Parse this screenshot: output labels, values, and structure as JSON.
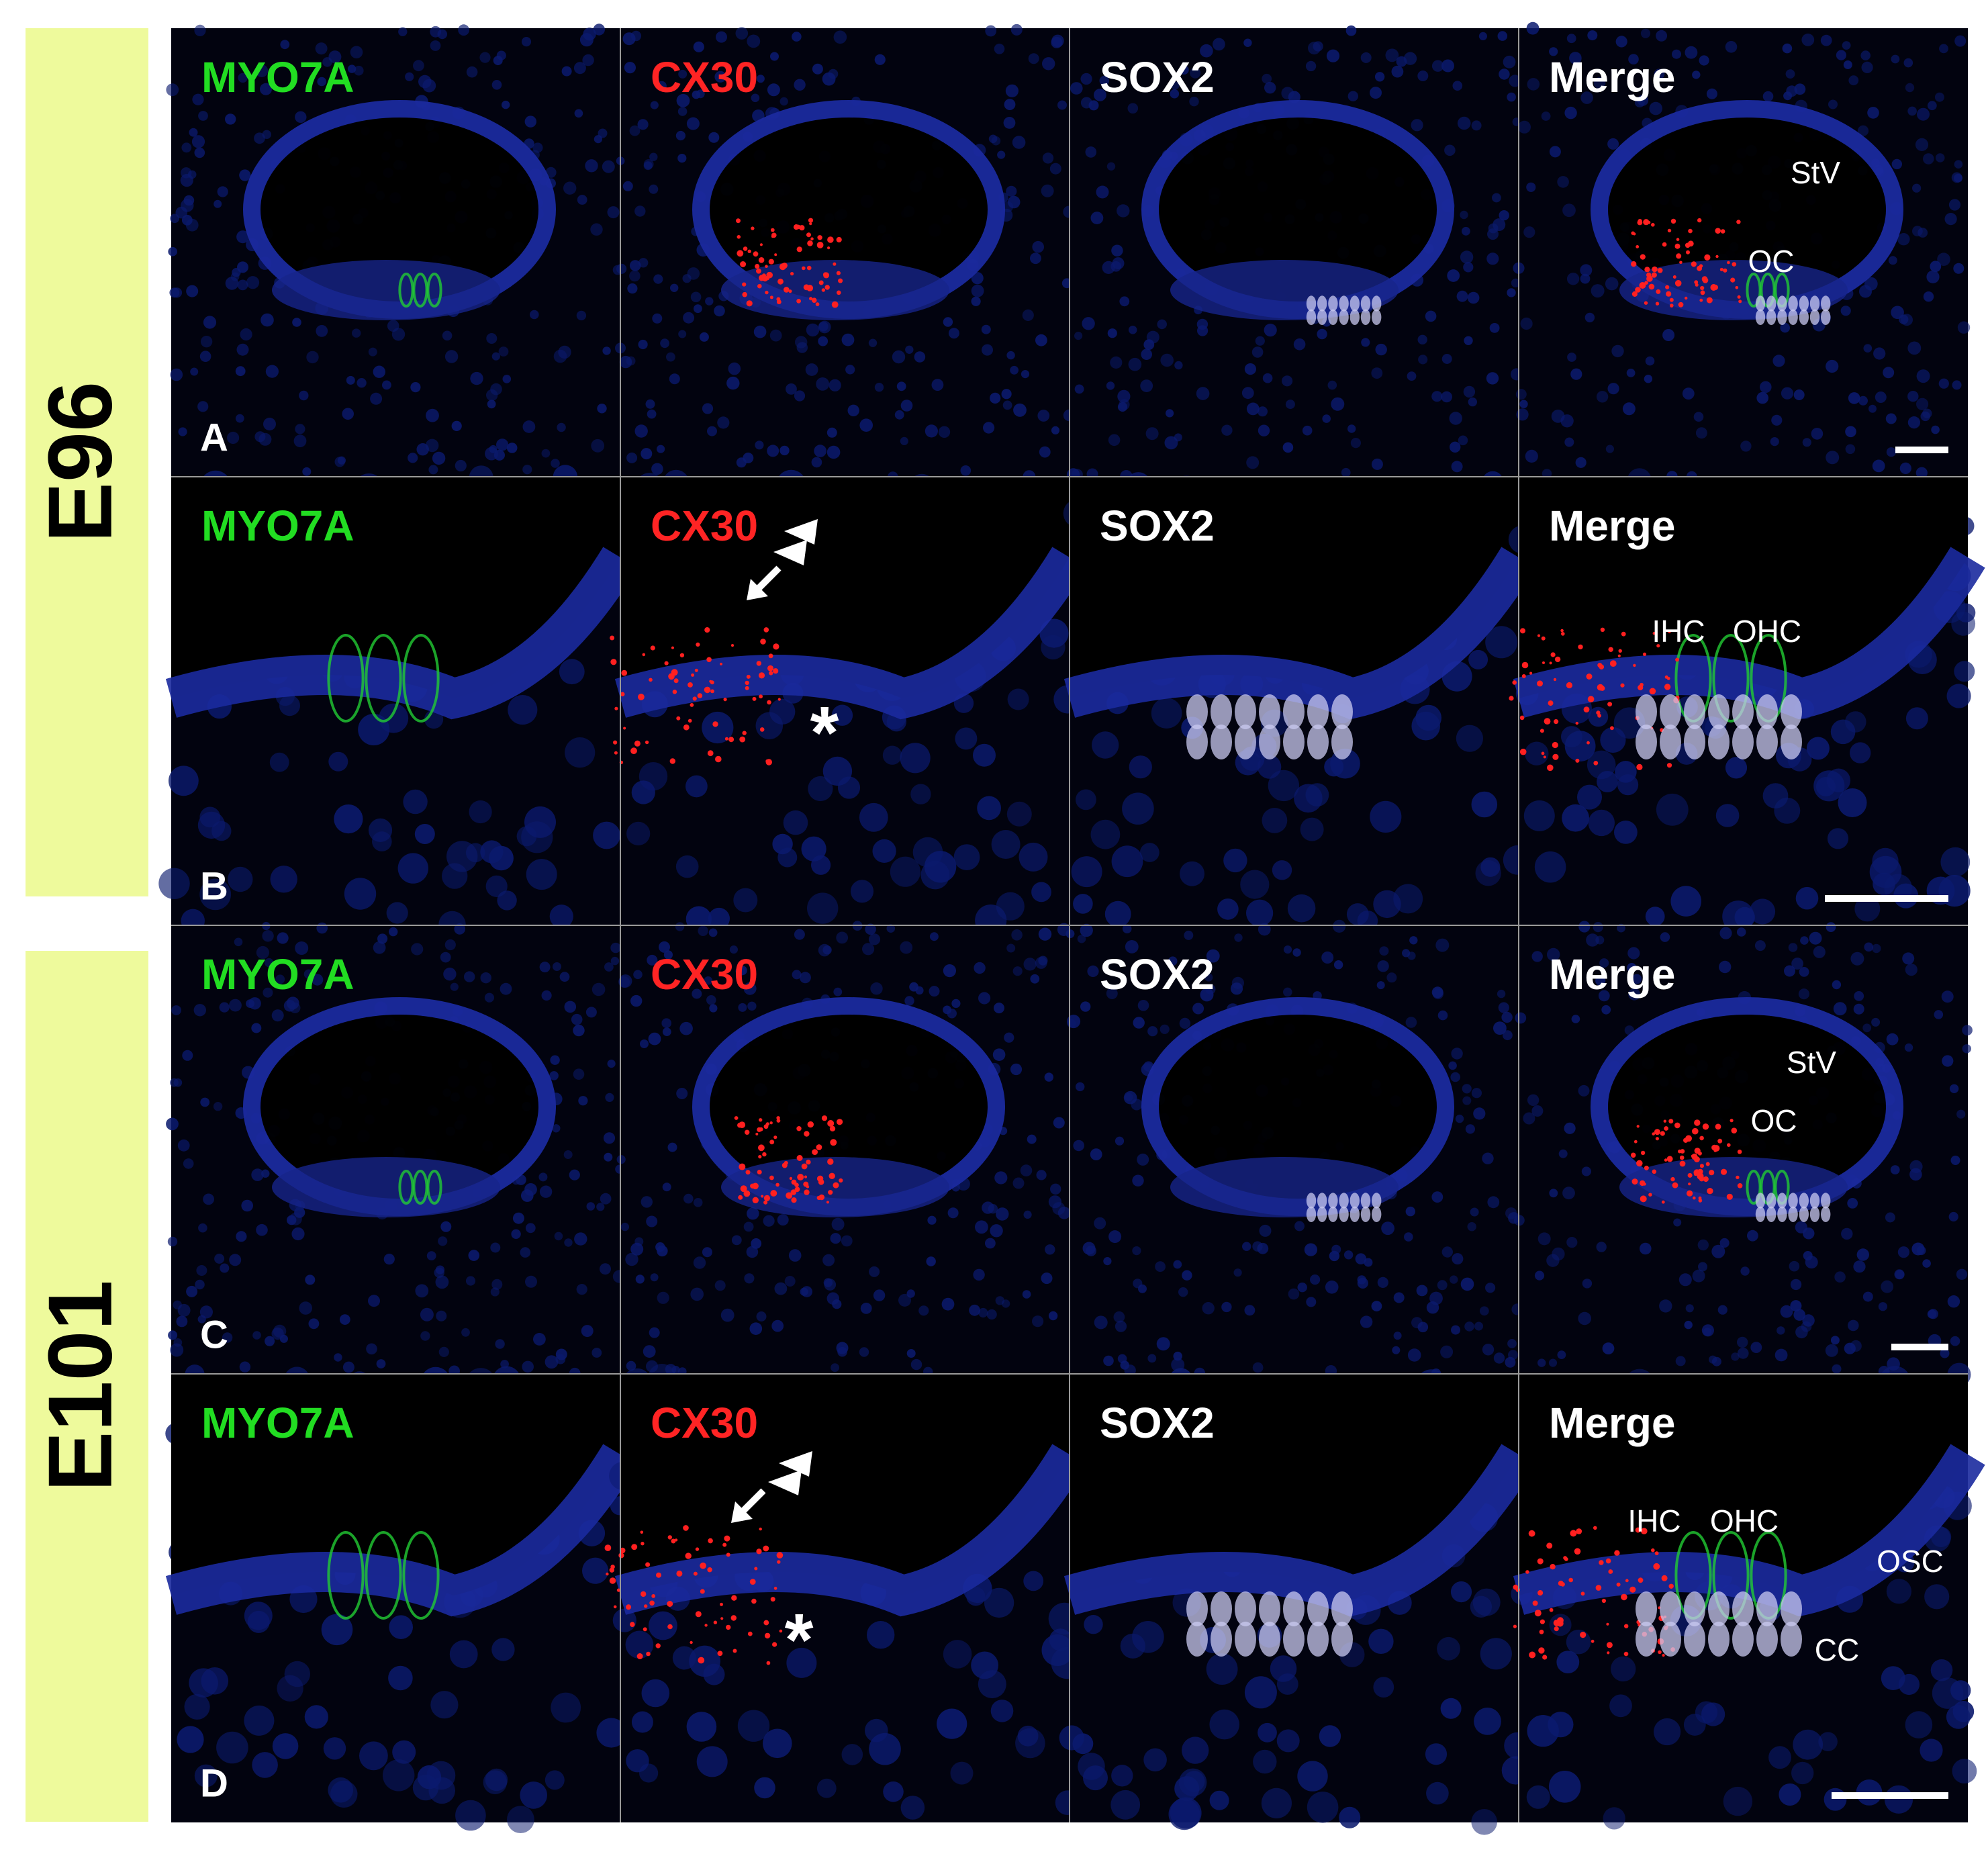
{
  "row_groups": [
    {
      "label": "E96"
    },
    {
      "label": "E101"
    }
  ],
  "panels": [
    {
      "letter": "A",
      "channels": [
        "MYO7A",
        "CX30",
        "SOX2",
        "Merge"
      ],
      "cx30_labels": [],
      "merge_labels": [
        "StV",
        "OC"
      ]
    },
    {
      "letter": "B",
      "channels": [
        "MYO7A",
        "CX30",
        "SOX2",
        "Merge"
      ],
      "cx30_labels": [
        "*"
      ],
      "merge_labels": [
        "IHC",
        "OHC"
      ]
    },
    {
      "letter": "C",
      "channels": [
        "MYO7A",
        "CX30",
        "SOX2",
        "Merge"
      ],
      "cx30_labels": [],
      "merge_labels": [
        "StV",
        "OC"
      ]
    },
    {
      "letter": "D",
      "channels": [
        "MYO7A",
        "CX30",
        "SOX2",
        "Merge"
      ],
      "cx30_labels": [
        "*"
      ],
      "merge_labels": [
        "IHC",
        "OHC",
        "OSC",
        "CC"
      ]
    }
  ]
}
